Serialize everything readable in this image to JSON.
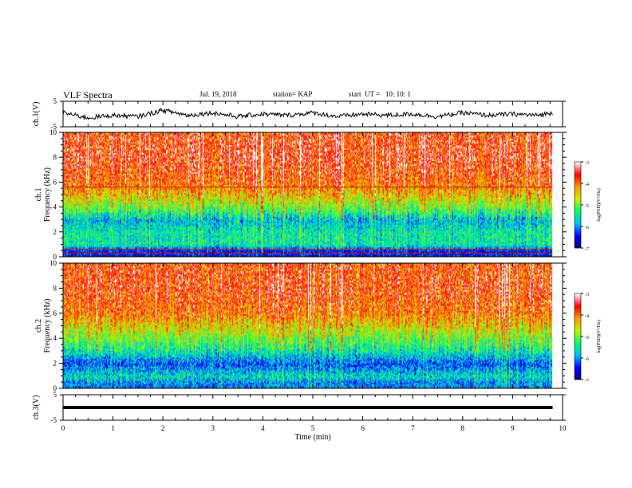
{
  "header": {
    "title": "VLF Spectra",
    "date": "Jul. 19, 2018",
    "station": "station= KAP",
    "start": "start  UT =   10: 10: 1"
  },
  "colorbar": {
    "label": "log(PSD)(V²/Hz)",
    "ticks": [
      "-3",
      "-4",
      "-5",
      "-6",
      "-7"
    ],
    "colors": [
      "#000080",
      "#0000ff",
      "#00bfff",
      "#00ff66",
      "#c8f000",
      "#ff9900",
      "#ff0000",
      "#ffffff"
    ]
  },
  "chart_data": [
    {
      "type": "line",
      "name": "ch1-voltage",
      "ylabel": "ch.1(V)",
      "ylim": [
        -5,
        5
      ],
      "yticks": [
        "5",
        "-5"
      ],
      "xlim": [
        0,
        10
      ],
      "note_values": "waveform oscillates roughly between -2 and 2 V around a baseline near 0",
      "x": [
        0,
        0.5,
        1,
        1.5,
        2,
        2.5,
        3,
        3.5,
        4,
        4.5,
        5,
        5.5,
        6,
        6.5,
        7,
        7.5,
        8,
        8.5,
        9,
        9.5,
        9.8
      ],
      "y": [
        0.5,
        -1.5,
        -0.5,
        -1.0,
        1.5,
        -0.5,
        0.5,
        -1.0,
        0.0,
        -0.5,
        0.5,
        -1.0,
        0.0,
        -0.5,
        0.0,
        -1.0,
        0.5,
        -0.5,
        0.0,
        -0.5,
        0.5
      ]
    },
    {
      "type": "heatmap",
      "name": "ch1-spectrogram",
      "ylabel": "ch.1\nFrequency (kHz)",
      "ylim": [
        0,
        10
      ],
      "yticks": [
        "0",
        "2",
        "4",
        "6",
        "8",
        "10"
      ],
      "xlim": [
        0,
        10
      ],
      "zlim": [
        -7,
        -3
      ],
      "lines_kHz": [
        5.6,
        0.6,
        0.3
      ],
      "profile": [
        {
          "f": 0.5,
          "z": -6.5
        },
        {
          "f": 1.0,
          "z": -5.5
        },
        {
          "f": 2.0,
          "z": -5.5
        },
        {
          "f": 3.0,
          "z": -5.8
        },
        {
          "f": 4.0,
          "z": -5.0
        },
        {
          "f": 5.0,
          "z": -4.4
        },
        {
          "f": 6.0,
          "z": -3.9
        },
        {
          "f": 8.0,
          "z": -3.6
        },
        {
          "f": 10.0,
          "z": -3.7
        }
      ]
    },
    {
      "type": "heatmap",
      "name": "ch2-spectrogram",
      "ylabel": "ch.2\nFrequency (kHz)",
      "ylim": [
        0,
        10
      ],
      "yticks": [
        "0",
        "2",
        "4",
        "6",
        "8",
        "10"
      ],
      "xlim": [
        0,
        10
      ],
      "zlim": [
        -7,
        -3
      ],
      "profile": [
        {
          "f": 0.5,
          "z": -6.0
        },
        {
          "f": 1.0,
          "z": -5.6
        },
        {
          "f": 2.0,
          "z": -6.2
        },
        {
          "f": 3.0,
          "z": -5.5
        },
        {
          "f": 4.0,
          "z": -5.0
        },
        {
          "f": 5.0,
          "z": -4.5
        },
        {
          "f": 6.0,
          "z": -4.0
        },
        {
          "f": 8.0,
          "z": -3.7
        },
        {
          "f": 10.0,
          "z": -3.8
        }
      ]
    },
    {
      "type": "line",
      "name": "ch3-voltage",
      "ylabel": "ch.3(V)",
      "ylim": [
        -5,
        5
      ],
      "yticks": [
        "5",
        "-5"
      ],
      "xlim": [
        0,
        10
      ],
      "x": [
        0,
        9.8
      ],
      "y": [
        0,
        0
      ]
    }
  ],
  "xaxis": {
    "label": "Time (min)",
    "ticks": [
      "0",
      "1",
      "2",
      "3",
      "4",
      "5",
      "6",
      "7",
      "8",
      "9",
      "10"
    ]
  }
}
